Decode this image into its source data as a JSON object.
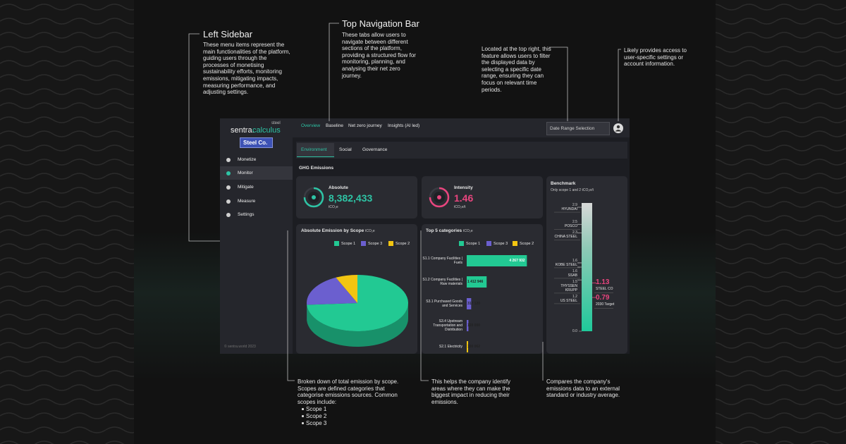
{
  "annotations": [
    {
      "title": "Left Sidebar",
      "text": "These menu items represent the main functionalities of the platform, guiding users through the processes of monetising sustainability efforts, monitoring emissions, mitigating impacts, measuring performance, and adjusting settings."
    },
    {
      "title": "Top Navigation Bar",
      "text": "These tabs allow users to navigate between different sections of the platform, providing a structured flow for monitoring, planning, and analysing their net zero journey."
    },
    {
      "text": "Located at the top right, this feature allows users to filter the displayed data by selecting a specific date range, ensuring they can focus on relevant time periods."
    },
    {
      "text": "Likely provides access to user-specific settings or account information."
    },
    {
      "text": "Broken down of total emission by scope. Scopes are defined categories that categorise emissions sources. Common scopes include:",
      "items": [
        "Scope 1",
        "Scope 2",
        "Scope 3"
      ]
    },
    {
      "text": "This helps the company identify areas where they can make the biggest impact in reducing their emissions."
    },
    {
      "text": "Compares the company's emissions data to an external standard or industry average."
    }
  ],
  "app": {
    "brand": "sentra.",
    "brand_accent": "calculus",
    "brand_tag": "steel",
    "company": "Steel Co.",
    "menu": [
      "Monetize",
      "Monitor",
      "Mitigate",
      "Measure",
      "Settings"
    ],
    "active_menu": 1,
    "footer": "© sentra.world 2023",
    "nav": [
      "Overview",
      "Baseline",
      "Net zero journey",
      "Insights (AI led)"
    ],
    "active_nav": 0,
    "date_range": "Date Range Selection",
    "tabs": [
      "Environment",
      "Social",
      "Governance"
    ],
    "active_tab": 0,
    "section": "GHG Emissions",
    "kpis": [
      {
        "label": "Absolute",
        "value": "8,382,433",
        "unit": "tCO₂e",
        "color": "#2ec4a5"
      },
      {
        "label": "Intensity",
        "value": "1.46",
        "unit": "tCO₂e/t",
        "color": "#e8457e"
      }
    ]
  },
  "chart_data": [
    {
      "type": "pie",
      "title": "Absolute Emission by Scope",
      "unit": "tCO₂e",
      "categories": [
        "Scope 1",
        "Scope 3",
        "Scope 2"
      ],
      "values": [
        74,
        19,
        7
      ],
      "colors": [
        "#22c993",
        "#6b5fcf",
        "#f2c511"
      ]
    },
    {
      "type": "bar",
      "title": "Top 5 categories",
      "unit": "tCO₂e",
      "legend": [
        "Scope 1",
        "Scope 3",
        "Scope 2"
      ],
      "legend_colors": [
        "#22c993",
        "#6b5fcf",
        "#f2c511"
      ],
      "categories": [
        "S1.1 Company Facilities | Fuels",
        "S1.2 Company Facilities | Raw materials",
        "S3.1 Purchased Goods and Services",
        "S3.4 Upstream Transportation and Distribution",
        "S2.1 Electricity"
      ],
      "values": [
        4267932,
        1412946,
        317120,
        120000,
        100062
      ],
      "value_labels": [
        "4 267 932",
        "1 412 946",
        "317 120",
        "120 000",
        "100 062"
      ],
      "colors": [
        "#22c993",
        "#22c993",
        "#6b5fcf",
        "#6b5fcf",
        "#f2c511"
      ],
      "xlim": [
        0,
        4500000
      ]
    },
    {
      "type": "benchmark",
      "title": "Benchmark",
      "subtitle": "Only scope 1 and 2 tCO₂e/t",
      "categories": [
        "HYUNDAI",
        "POSCO",
        "CHINA STEEL",
        "KOBE STEEL",
        "SSAB",
        "THYSSEN KRUPP",
        "US STEEL",
        "STEEL CO",
        "2030 Target"
      ],
      "values": [
        2.9,
        2.5,
        2.3,
        1.6,
        1.6,
        1.5,
        1.2,
        1.13,
        0.79
      ],
      "highlight": [
        7,
        8
      ],
      "highlight_color": "#e8457e",
      "ylim": [
        0,
        3
      ],
      "yticks": [
        {
          "value": 0,
          "label": "0.0"
        }
      ]
    }
  ]
}
